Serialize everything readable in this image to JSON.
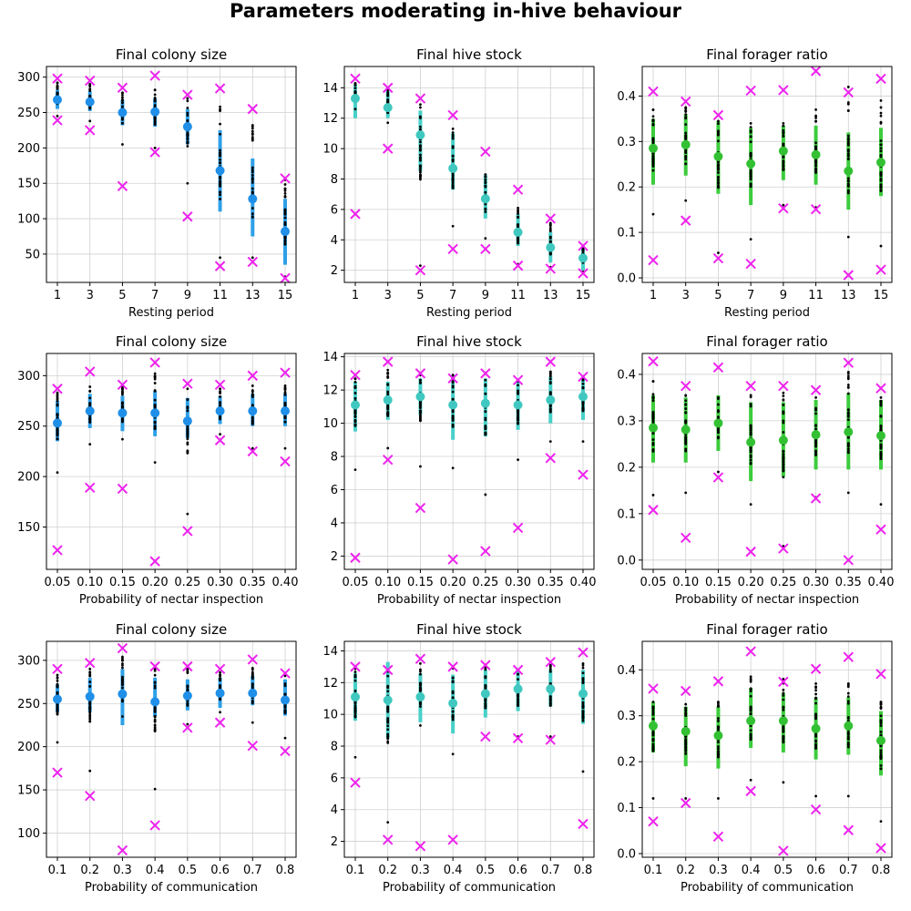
{
  "title": "Parameters moderating in-hive behaviour",
  "colors": {
    "colony": "#1f8fe8",
    "colony_err": "#2ea0e8",
    "stock": "#40c8c0",
    "stock_err": "#48d0c8",
    "ratio": "#33c133",
    "ratio_err": "#3ccc3c",
    "extreme": "#ee22ee",
    "dots": "#000000",
    "grid": "#d0d0d0"
  },
  "chart_data": [
    {
      "type": "scatter",
      "title": "Final colony size",
      "xlabel": "Resting period",
      "categories": [
        "1",
        "3",
        "5",
        "7",
        "9",
        "11",
        "13",
        "15"
      ],
      "ylim": [
        10,
        315
      ],
      "yticks": [
        50,
        100,
        150,
        200,
        250,
        300
      ],
      "mean": [
        268,
        265,
        250,
        251,
        230,
        168,
        128,
        82
      ],
      "err_low": [
        255,
        252,
        232,
        230,
        205,
        110,
        75,
        35
      ],
      "err_high": [
        282,
        280,
        268,
        270,
        255,
        225,
        185,
        128
      ],
      "max": [
        298,
        295,
        285,
        302,
        275,
        284,
        255,
        157
      ],
      "min": [
        239,
        225,
        146,
        194,
        103,
        33,
        39,
        16
      ],
      "dots_low": [
        245,
        238,
        205,
        200,
        150,
        45,
        45,
        18
      ],
      "dots_high": [
        292,
        290,
        278,
        282,
        270,
        258,
        232,
        155
      ]
    },
    {
      "type": "scatter",
      "title": "Final hive stock",
      "xlabel": "Resting period",
      "categories": [
        "1",
        "3",
        "5",
        "7",
        "9",
        "11",
        "13",
        "15"
      ],
      "ylim": [
        1.2,
        15.4
      ],
      "yticks": [
        2,
        4,
        6,
        8,
        10,
        12,
        14
      ],
      "mean": [
        13.3,
        12.7,
        10.9,
        8.7,
        6.7,
        4.5,
        3.5,
        2.8
      ],
      "err_low": [
        12.0,
        12.0,
        8.5,
        7.3,
        5.4,
        3.6,
        2.5,
        2.0
      ],
      "err_high": [
        14.2,
        13.8,
        12.5,
        11.0,
        8.3,
        5.7,
        4.5,
        3.6
      ],
      "max": [
        14.6,
        14.0,
        13.3,
        12.2,
        9.8,
        7.3,
        5.4,
        3.6
      ],
      "min": [
        5.7,
        10.0,
        2.0,
        3.4,
        3.4,
        2.3,
        2.1,
        1.8
      ],
      "dots_low": [
        12.6,
        11.7,
        2.3,
        4.9,
        4.1,
        2.4,
        2.2,
        1.9
      ],
      "dots_high": [
        14.3,
        13.9,
        12.9,
        11.3,
        8.3,
        6.1,
        5.1,
        3.6
      ]
    },
    {
      "type": "scatter",
      "title": "Final forager ratio",
      "xlabel": "Resting period",
      "categories": [
        "1",
        "3",
        "5",
        "7",
        "9",
        "11",
        "13",
        "15"
      ],
      "ylim": [
        -0.01,
        0.465
      ],
      "yticks": [
        0.0,
        0.1,
        0.2,
        0.3,
        0.4
      ],
      "mean": [
        0.285,
        0.293,
        0.267,
        0.251,
        0.279,
        0.271,
        0.235,
        0.254
      ],
      "err_low": [
        0.205,
        0.225,
        0.185,
        0.16,
        0.215,
        0.205,
        0.15,
        0.18
      ],
      "err_high": [
        0.35,
        0.36,
        0.345,
        0.33,
        0.335,
        0.335,
        0.32,
        0.33
      ],
      "max": [
        0.41,
        0.388,
        0.358,
        0.412,
        0.413,
        0.455,
        0.408,
        0.438
      ],
      "min": [
        0.039,
        0.126,
        0.043,
        0.031,
        0.153,
        0.151,
        0.006,
        0.018
      ],
      "dots_low": [
        0.14,
        0.17,
        0.055,
        0.085,
        0.16,
        0.155,
        0.09,
        0.07
      ],
      "dots_high": [
        0.37,
        0.375,
        0.345,
        0.34,
        0.34,
        0.37,
        0.42,
        0.39
      ]
    },
    {
      "type": "scatter",
      "title": "Final colony size",
      "xlabel": "Probability of nectar inspection",
      "categories": [
        "0.05",
        "0.10",
        "0.15",
        "0.20",
        "0.25",
        "0.30",
        "0.35",
        "0.40"
      ],
      "ylim": [
        108,
        322
      ],
      "yticks": [
        150,
        200,
        250,
        300
      ],
      "mean": [
        253,
        265,
        263,
        263,
        255,
        265,
        265,
        265
      ],
      "err_low": [
        235,
        248,
        245,
        240,
        238,
        252,
        250,
        250
      ],
      "err_high": [
        275,
        282,
        280,
        285,
        278,
        280,
        282,
        282
      ],
      "max": [
        287,
        304,
        291,
        313,
        292,
        291,
        300,
        303
      ],
      "min": [
        127,
        189,
        188,
        116,
        146,
        236,
        225,
        215
      ],
      "dots_low": [
        204,
        232,
        237,
        214,
        163,
        242,
        228,
        228
      ],
      "dots_high": [
        283,
        289,
        289,
        302,
        287,
        287,
        290,
        290
      ]
    },
    {
      "type": "scatter",
      "title": "Final hive stock",
      "xlabel": "Probability of nectar inspection",
      "categories": [
        "0.05",
        "0.10",
        "0.15",
        "0.20",
        "0.25",
        "0.30",
        "0.35",
        "0.40"
      ],
      "ylim": [
        1.2,
        14.2
      ],
      "yticks": [
        2,
        4,
        6,
        8,
        10,
        12,
        14
      ],
      "mean": [
        11.1,
        11.4,
        11.6,
        11.1,
        11.2,
        11.1,
        11.4,
        11.6
      ],
      "err_low": [
        9.5,
        10.2,
        10.5,
        9.0,
        9.2,
        9.6,
        10.0,
        10.2
      ],
      "err_high": [
        12.5,
        12.5,
        12.7,
        12.9,
        12.7,
        12.5,
        12.8,
        12.8
      ],
      "max": [
        12.9,
        13.7,
        13.0,
        12.7,
        13.0,
        12.6,
        13.7,
        12.8
      ],
      "min": [
        1.9,
        7.8,
        4.9,
        1.8,
        2.3,
        3.7,
        7.9,
        6.9
      ],
      "dots_low": [
        7.2,
        8.5,
        7.4,
        7.3,
        5.7,
        7.8,
        8.9,
        8.9
      ],
      "dots_high": [
        12.9,
        13.2,
        12.9,
        12.9,
        13.0,
        12.6,
        13.1,
        12.8
      ]
    },
    {
      "type": "scatter",
      "title": "Final forager ratio",
      "xlabel": "Probability of nectar inspection",
      "categories": [
        "0.05",
        "0.10",
        "0.15",
        "0.20",
        "0.25",
        "0.30",
        "0.35",
        "0.40"
      ],
      "ylim": [
        -0.02,
        0.445
      ],
      "yticks": [
        0.0,
        0.1,
        0.2,
        0.3,
        0.4
      ],
      "mean": [
        0.285,
        0.281,
        0.295,
        0.254,
        0.258,
        0.27,
        0.276,
        0.268
      ],
      "err_low": [
        0.21,
        0.21,
        0.235,
        0.17,
        0.18,
        0.195,
        0.195,
        0.195
      ],
      "err_high": [
        0.355,
        0.35,
        0.355,
        0.34,
        0.34,
        0.345,
        0.36,
        0.345
      ],
      "max": [
        0.428,
        0.375,
        0.415,
        0.375,
        0.375,
        0.366,
        0.425,
        0.37
      ],
      "min": [
        0.108,
        0.048,
        0.178,
        0.018,
        0.025,
        0.133,
        0.0,
        0.066
      ],
      "dots_low": [
        0.14,
        0.145,
        0.19,
        0.12,
        0.03,
        0.135,
        0.145,
        0.12
      ],
      "dots_high": [
        0.385,
        0.355,
        0.35,
        0.355,
        0.36,
        0.35,
        0.405,
        0.35
      ]
    },
    {
      "type": "scatter",
      "title": "Final colony size",
      "xlabel": "Probability of communication",
      "categories": [
        "0.1",
        "0.2",
        "0.3",
        "0.4",
        "0.5",
        "0.6",
        "0.7",
        "0.8"
      ],
      "ylim": [
        72,
        322
      ],
      "yticks": [
        100,
        150,
        200,
        250,
        300
      ],
      "mean": [
        255,
        258,
        261,
        252,
        259,
        262,
        262,
        254
      ],
      "err_low": [
        240,
        240,
        225,
        235,
        242,
        245,
        248,
        236
      ],
      "err_high": [
        272,
        280,
        290,
        280,
        278,
        280,
        282,
        278
      ],
      "max": [
        290,
        297,
        314,
        293,
        293,
        290,
        301,
        285
      ],
      "min": [
        170,
        143,
        80,
        109,
        222,
        228,
        201,
        195
      ],
      "dots_low": [
        205,
        172,
        235,
        151,
        226,
        240,
        228,
        210
      ],
      "dots_high": [
        283,
        290,
        304,
        290,
        290,
        286,
        291,
        282
      ]
    },
    {
      "type": "scatter",
      "title": "Final hive stock",
      "xlabel": "Probability of communication",
      "categories": [
        "0.1",
        "0.2",
        "0.3",
        "0.4",
        "0.5",
        "0.6",
        "0.7",
        "0.8"
      ],
      "ylim": [
        1.0,
        14.6
      ],
      "yticks": [
        2,
        4,
        6,
        8,
        10,
        12,
        14
      ],
      "mean": [
        11.1,
        10.9,
        11.1,
        10.7,
        11.3,
        11.6,
        11.6,
        11.3
      ],
      "err_low": [
        9.6,
        8.5,
        9.5,
        8.8,
        9.8,
        10.2,
        10.5,
        9.4
      ],
      "err_high": [
        12.6,
        13.3,
        12.6,
        12.5,
        12.8,
        12.9,
        12.8,
        12.8
      ],
      "max": [
        13.0,
        12.8,
        13.5,
        13.0,
        13.1,
        12.8,
        13.3,
        13.9
      ],
      "min": [
        5.7,
        2.1,
        1.7,
        2.1,
        8.6,
        8.5,
        8.4,
        3.1
      ],
      "dots_low": [
        7.3,
        3.2,
        9.3,
        7.5,
        8.6,
        8.6,
        8.6,
        6.4
      ],
      "dots_high": [
        13.0,
        12.8,
        13.2,
        13.0,
        13.0,
        12.8,
        13.1,
        13.2
      ]
    },
    {
      "type": "scatter",
      "title": "Final forager ratio",
      "xlabel": "Probability of communication",
      "categories": [
        "0.1",
        "0.2",
        "0.3",
        "0.4",
        "0.5",
        "0.6",
        "0.7",
        "0.8"
      ],
      "ylim": [
        -0.008,
        0.462
      ],
      "yticks": [
        0.0,
        0.1,
        0.2,
        0.3,
        0.4
      ],
      "mean": [
        0.278,
        0.266,
        0.257,
        0.289,
        0.289,
        0.272,
        0.278,
        0.246
      ],
      "err_low": [
        0.22,
        0.19,
        0.185,
        0.23,
        0.22,
        0.205,
        0.215,
        0.17
      ],
      "err_high": [
        0.33,
        0.32,
        0.32,
        0.36,
        0.35,
        0.34,
        0.34,
        0.31
      ],
      "max": [
        0.359,
        0.354,
        0.375,
        0.44,
        0.374,
        0.402,
        0.428,
        0.391
      ],
      "min": [
        0.07,
        0.11,
        0.037,
        0.136,
        0.006,
        0.096,
        0.051,
        0.012
      ],
      "dots_low": [
        0.12,
        0.12,
        0.12,
        0.16,
        0.155,
        0.125,
        0.125,
        0.07
      ],
      "dots_high": [
        0.33,
        0.325,
        0.33,
        0.385,
        0.38,
        0.37,
        0.37,
        0.33
      ]
    }
  ]
}
